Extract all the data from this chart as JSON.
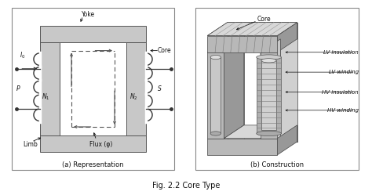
{
  "fig_title": "Fig. 2.2 Core Type",
  "panel_a_title": "(a) Representation",
  "panel_b_title": "(b) Construction",
  "bg_color": "#ffffff",
  "box_bg": "#f5f5f5",
  "core_color": "#555555",
  "dashed_color": "#555555",
  "label_color": "#111111",
  "coil_color": "#333333",
  "line_color": "#222222"
}
